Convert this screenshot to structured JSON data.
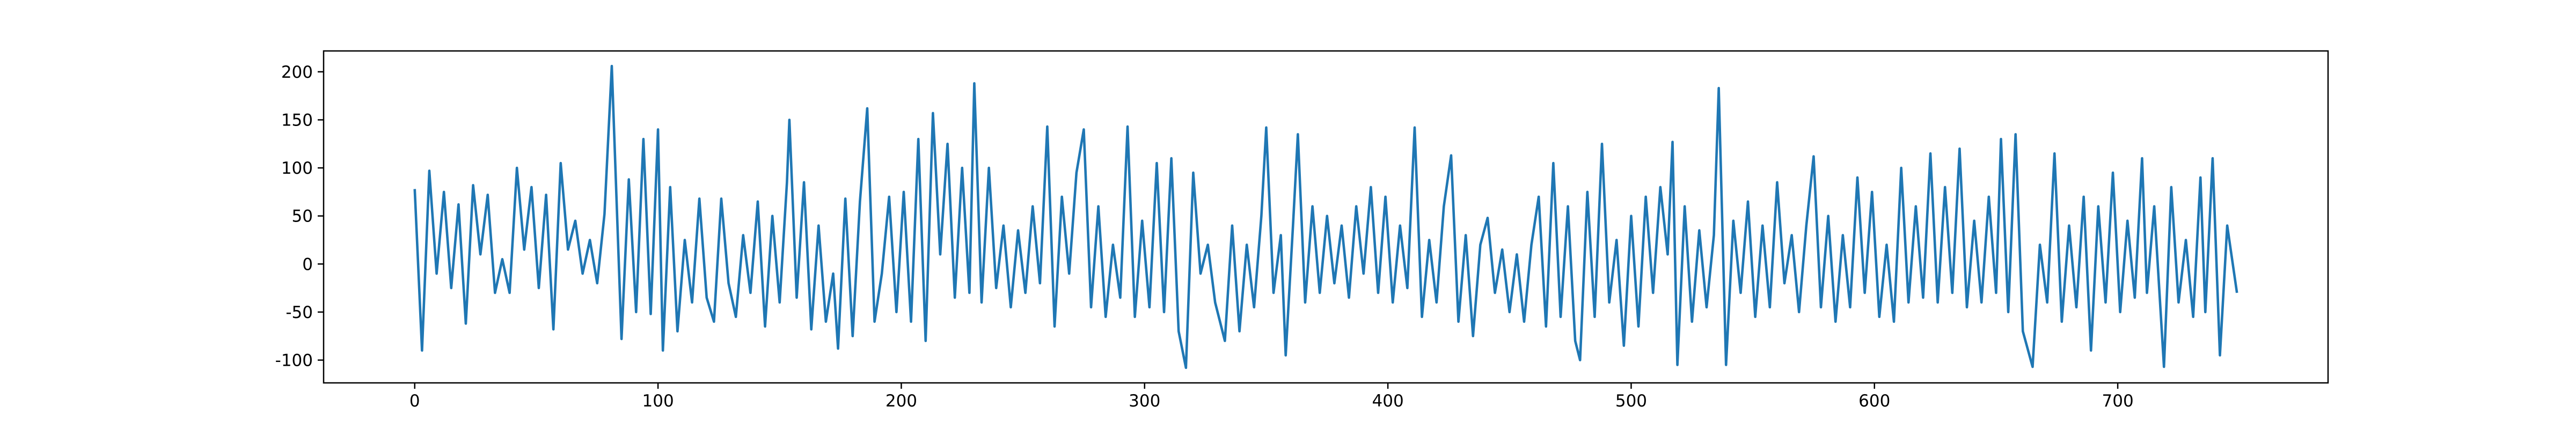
{
  "chart_data": {
    "type": "line",
    "x": [
      0,
      3,
      6,
      9,
      12,
      15,
      18,
      21,
      24,
      27,
      30,
      33,
      36,
      39,
      42,
      45,
      48,
      51,
      54,
      57,
      60,
      63,
      66,
      69,
      72,
      75,
      78,
      81,
      85,
      88,
      91,
      94,
      97,
      100,
      102,
      105,
      108,
      111,
      114,
      117,
      120,
      123,
      126,
      129,
      132,
      135,
      138,
      141,
      144,
      147,
      150,
      153,
      154,
      157,
      160,
      163,
      166,
      169,
      172,
      174,
      177,
      180,
      183,
      186,
      189,
      192,
      195,
      198,
      201,
      204,
      207,
      210,
      213,
      216,
      219,
      222,
      225,
      228,
      230,
      233,
      236,
      239,
      242,
      245,
      248,
      251,
      254,
      257,
      260,
      263,
      266,
      269,
      272,
      275,
      278,
      281,
      284,
      287,
      290,
      293,
      296,
      299,
      302,
      305,
      308,
      311,
      314,
      317,
      320,
      323,
      326,
      329,
      333,
      336,
      339,
      342,
      345,
      348,
      350,
      353,
      356,
      358,
      361,
      363,
      366,
      369,
      372,
      375,
      378,
      381,
      384,
      387,
      390,
      393,
      396,
      399,
      402,
      405,
      408,
      411,
      414,
      417,
      420,
      423,
      426,
      429,
      432,
      435,
      438,
      441,
      444,
      447,
      450,
      453,
      456,
      459,
      462,
      465,
      468,
      471,
      474,
      477,
      479,
      482,
      485,
      488,
      491,
      494,
      497,
      500,
      503,
      506,
      509,
      512,
      515,
      517,
      519,
      522,
      525,
      528,
      531,
      534,
      536,
      539,
      542,
      545,
      548,
      551,
      554,
      557,
      560,
      563,
      566,
      569,
      572,
      575,
      578,
      581,
      584,
      587,
      590,
      593,
      596,
      599,
      602,
      605,
      608,
      611,
      614,
      617,
      620,
      623,
      626,
      629,
      632,
      635,
      638,
      641,
      644,
      647,
      650,
      652,
      655,
      658,
      661,
      665,
      668,
      671,
      674,
      677,
      680,
      683,
      686,
      689,
      692,
      695,
      698,
      701,
      704,
      707,
      710,
      712,
      715,
      719,
      722,
      725,
      728,
      731,
      734,
      736,
      739,
      742,
      745,
      749
    ],
    "series": [
      {
        "color": "#1f77b4",
        "values": [
          78,
          -90,
          97,
          -10,
          75,
          -25,
          62,
          -62,
          82,
          10,
          72,
          -30,
          5,
          -30,
          100,
          15,
          80,
          -25,
          72,
          -68,
          105,
          15,
          45,
          -10,
          25,
          -20,
          52,
          206,
          -78,
          88,
          -50,
          130,
          -52,
          140,
          -90,
          80,
          -70,
          25,
          -40,
          68,
          -35,
          -60,
          68,
          -20,
          -55,
          30,
          -30,
          65,
          -65,
          50,
          -40,
          85,
          150,
          -35,
          85,
          -68,
          40,
          -60,
          -10,
          -88,
          68,
          -75,
          65,
          162,
          -60,
          -10,
          70,
          -50,
          75,
          -60,
          130,
          -80,
          157,
          10,
          125,
          -35,
          100,
          -30,
          188,
          -40,
          100,
          -25,
          40,
          -45,
          35,
          -30,
          60,
          -20,
          143,
          -65,
          70,
          -10,
          95,
          140,
          -45,
          60,
          -55,
          20,
          -35,
          143,
          -55,
          45,
          -45,
          105,
          -50,
          110,
          -70,
          -108,
          95,
          -10,
          20,
          -40,
          -80,
          40,
          -70,
          20,
          -45,
          50,
          142,
          -30,
          30,
          -95,
          40,
          135,
          -40,
          60,
          -30,
          50,
          -20,
          40,
          -35,
          60,
          -10,
          80,
          -30,
          70,
          -40,
          40,
          -25,
          142,
          -55,
          25,
          -40,
          60,
          113,
          -60,
          30,
          -75,
          20,
          48,
          -30,
          15,
          -50,
          10,
          -60,
          20,
          70,
          -65,
          105,
          -55,
          60,
          -80,
          -100,
          75,
          -55,
          125,
          -40,
          25,
          -85,
          50,
          -65,
          70,
          -30,
          80,
          10,
          127,
          -105,
          60,
          -60,
          35,
          -45,
          30,
          183,
          -105,
          45,
          -30,
          65,
          -55,
          40,
          -45,
          85,
          -20,
          30,
          -50,
          40,
          112,
          -45,
          50,
          -60,
          30,
          -45,
          90,
          -30,
          75,
          -55,
          20,
          -60,
          100,
          -40,
          60,
          -35,
          115,
          -40,
          80,
          -30,
          120,
          -45,
          45,
          -40,
          70,
          -30,
          130,
          -50,
          135,
          -70,
          -107,
          20,
          -40,
          115,
          -60,
          40,
          -45,
          70,
          -90,
          60,
          -40,
          95,
          -50,
          45,
          -35,
          110,
          -30,
          60,
          -107,
          80,
          -40,
          25,
          -55,
          90,
          -50,
          110,
          -95,
          40,
          -30
        ]
      }
    ],
    "xlim": [
      -37.45,
      786.45
    ],
    "ylim": [
      -123.7,
      221.7
    ],
    "xticks": [
      0,
      100,
      200,
      300,
      400,
      500,
      600,
      700
    ],
    "yticks": [
      -100,
      -50,
      0,
      50,
      100,
      150,
      200
    ]
  }
}
